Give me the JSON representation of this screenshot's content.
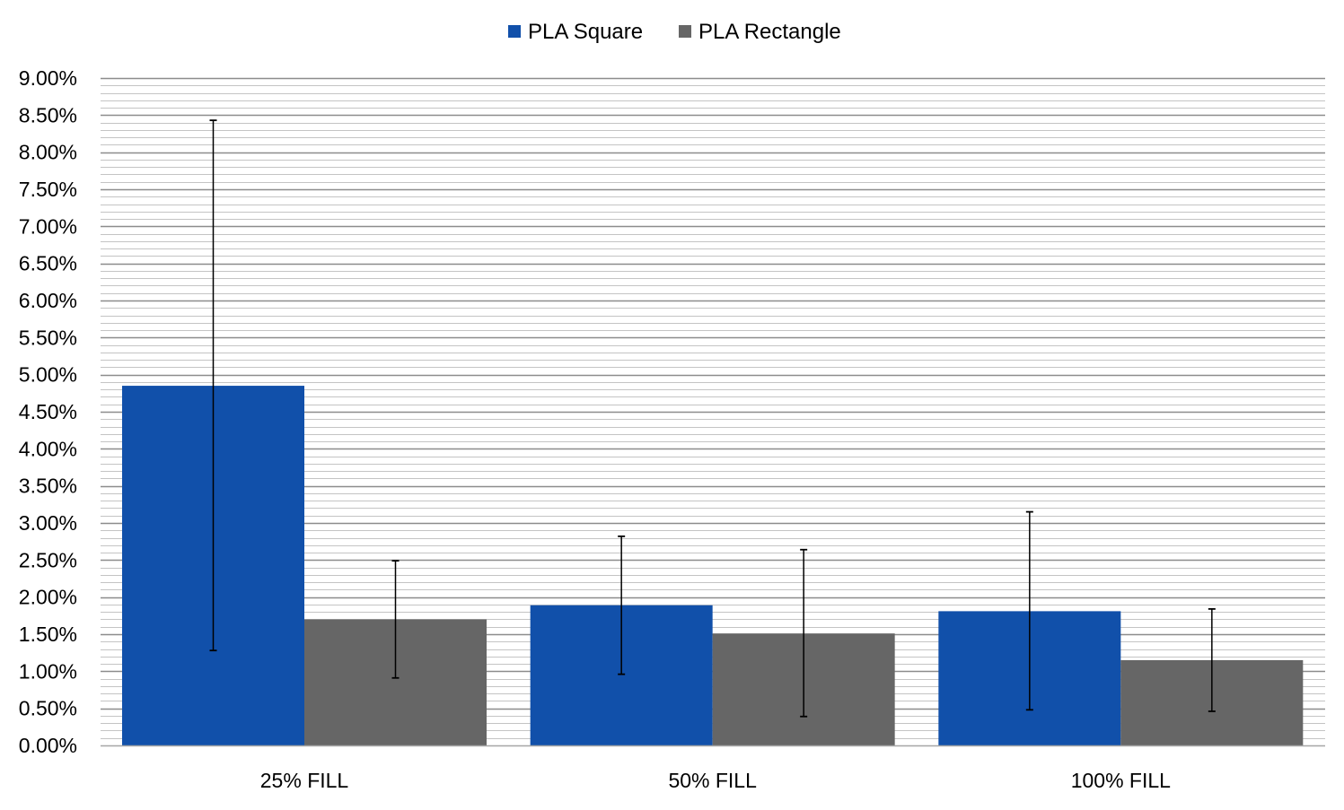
{
  "chart_data": {
    "type": "bar",
    "categories": [
      "25% FILL",
      "50% FILL",
      "100% FILL"
    ],
    "series": [
      {
        "name": "PLA Square",
        "color": "#1150AA",
        "values": [
          0.0485,
          0.0189,
          0.0181
        ],
        "error_low": [
          0.0128,
          0.0096,
          0.0048
        ],
        "error_high": [
          0.0843,
          0.0282,
          0.0315
        ]
      },
      {
        "name": "PLA Rectangle",
        "color": "#666666",
        "values": [
          0.017,
          0.0151,
          0.0115
        ],
        "error_low": [
          0.0091,
          0.0039,
          0.0046
        ],
        "error_high": [
          0.0249,
          0.0264,
          0.0184
        ]
      }
    ],
    "y_ticks": [
      "0.00%",
      "0.50%",
      "1.00%",
      "1.50%",
      "2.00%",
      "2.50%",
      "3.00%",
      "3.50%",
      "4.00%",
      "4.50%",
      "5.00%",
      "5.50%",
      "6.00%",
      "6.50%",
      "7.00%",
      "7.50%",
      "8.00%",
      "8.50%",
      "9.00%"
    ],
    "ylim": [
      0,
      0.09
    ],
    "y_major_step": 0.005,
    "y_minor_step": 0.001,
    "grid": true,
    "legend_position": "top-center",
    "title": "",
    "xlabel": "",
    "ylabel": ""
  }
}
